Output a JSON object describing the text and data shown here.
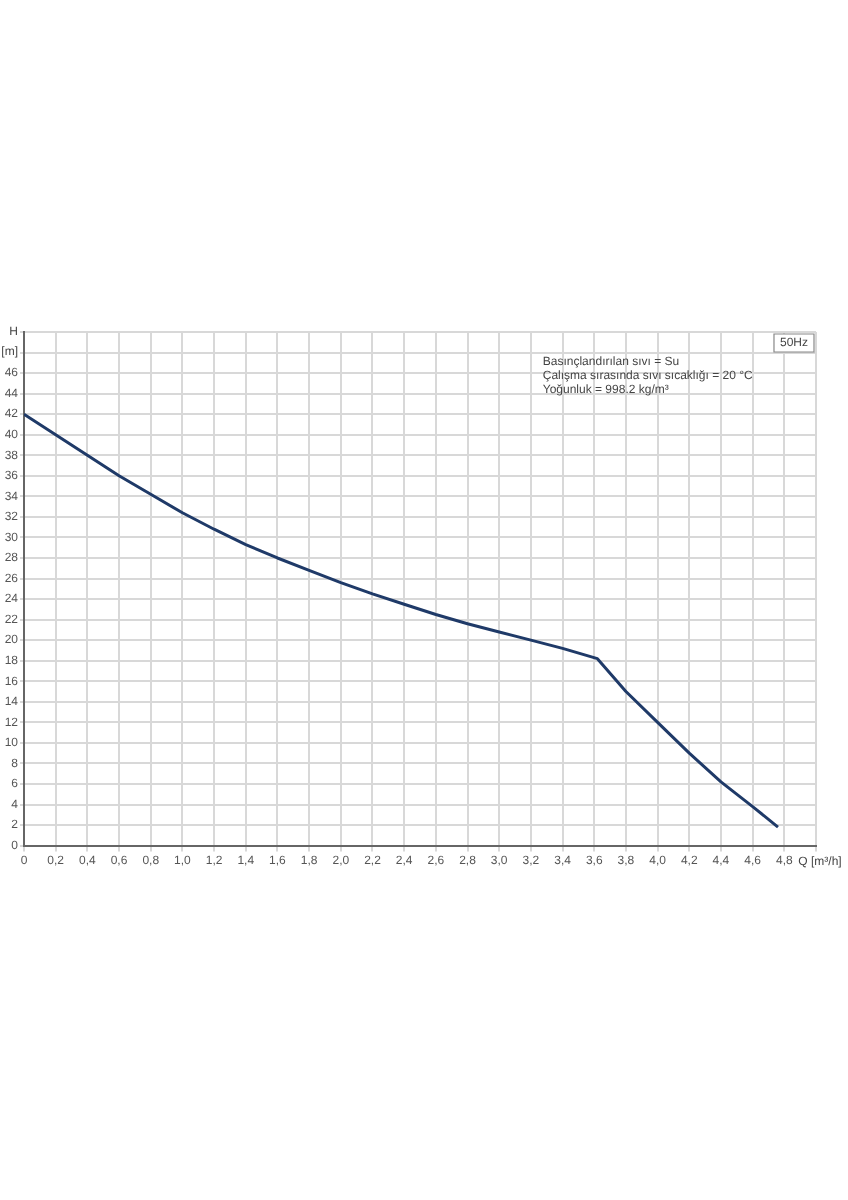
{
  "chart_data": {
    "type": "line",
    "xlabel": "Q [m³/h]",
    "ylabel": "H [m]",
    "annotations": [
      "50Hz",
      "Basınçlandırılan sıvı = Su",
      "Çalışma sırasında sıvı sıcaklığı = 20 °C",
      "Yoğunluk = 998.2 kg/m³"
    ],
    "x": [
      0,
      0.2,
      0.4,
      0.6,
      0.8,
      1.0,
      1.2,
      1.4,
      1.6,
      1.8,
      2.0,
      2.2,
      2.4,
      2.6,
      2.8,
      3.0,
      3.2,
      3.4,
      3.62,
      3.8,
      4.0,
      4.2,
      4.4,
      4.6,
      4.76
    ],
    "series": [
      {
        "color": "#1f3a68",
        "values": [
          42,
          40,
          38,
          36,
          34.2,
          32.4,
          30.8,
          29.3,
          28,
          26.8,
          25.6,
          24.5,
          23.5,
          22.5,
          21.6,
          20.8,
          20,
          19.2,
          18.2,
          15,
          12,
          9,
          6.2,
          3.8,
          1.8
        ]
      }
    ],
    "xlim": [
      0,
      5
    ],
    "ylim": [
      0,
      50
    ],
    "xticks": [
      0,
      {
        "value": 0.2,
        "label": "0,2"
      },
      {
        "value": 0.4,
        "label": "0,4"
      },
      {
        "value": 0.6,
        "label": "0,6"
      },
      {
        "value": 0.8,
        "label": "0,8"
      },
      {
        "value": 1,
        "label": "1,0"
      },
      {
        "value": 1.2,
        "label": "1,2"
      },
      {
        "value": 1.4,
        "label": "1,4"
      },
      {
        "value": 1.6,
        "label": "1,6"
      },
      {
        "value": 1.8,
        "label": "1,8"
      },
      {
        "value": 2,
        "label": "2,0"
      },
      {
        "value": 2.2,
        "label": "2,2"
      },
      {
        "value": 2.4,
        "label": "2,4"
      },
      {
        "value": 2.6,
        "label": "2,6"
      },
      {
        "value": 2.8,
        "label": "2,8"
      },
      {
        "value": 3,
        "label": "3,0"
      },
      {
        "value": 3.2,
        "label": "3,2"
      },
      {
        "value": 3.4,
        "label": "3,4"
      },
      {
        "value": 3.6,
        "label": "3,6"
      },
      {
        "value": 3.8,
        "label": "3,8"
      },
      {
        "value": 4,
        "label": "4,0"
      },
      {
        "value": 4.2,
        "label": "4,2"
      },
      {
        "value": 4.4,
        "label": "4,4"
      },
      {
        "value": 4.6,
        "label": "4,6"
      },
      {
        "value": 4.8,
        "label": "4,8"
      },
      {
        "value": 5,
        "label": null
      }
    ],
    "yticks": [
      0,
      2,
      4,
      6,
      8,
      10,
      12,
      14,
      16,
      18,
      20,
      22,
      24,
      26,
      28,
      30,
      32,
      34,
      36,
      38,
      40,
      42,
      44,
      46,
      {
        "value": 48,
        "label": null
      },
      {
        "value": 50,
        "label": null
      }
    ],
    "grid": true,
    "marker": "none",
    "line_style": "solid"
  }
}
